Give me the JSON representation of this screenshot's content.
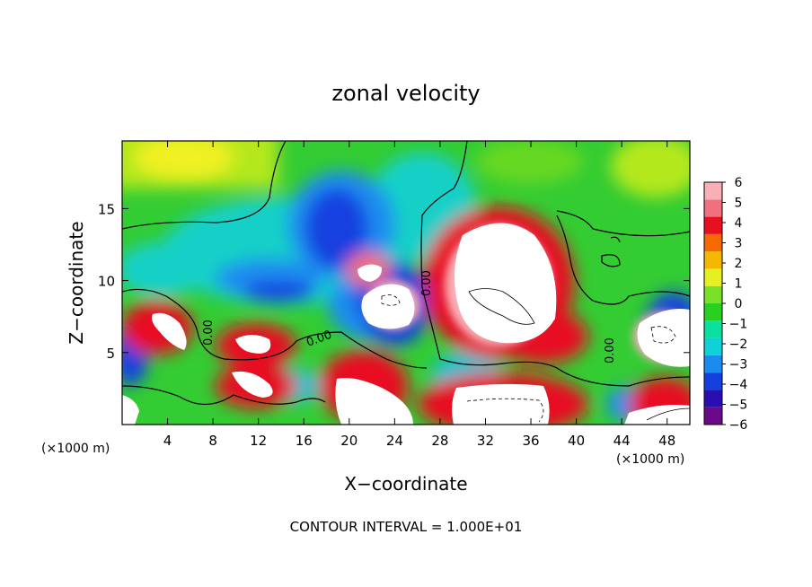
{
  "chart_data": {
    "type": "heatmap",
    "title": "zonal velocity",
    "xlabel": "X−coordinate",
    "ylabel": "Z−coordinate",
    "x_unit_left": "(×1000 m)",
    "x_unit_right": "(×1000 m)",
    "footer": "CONTOUR INTERVAL = 1.000E+01",
    "xlim": [
      0,
      50
    ],
    "ylim": [
      0,
      19.7
    ],
    "x_ticks": [
      4,
      8,
      12,
      16,
      20,
      24,
      28,
      32,
      36,
      40,
      44,
      48
    ],
    "y_ticks": [
      5,
      10,
      15
    ],
    "contour_label": "0.00",
    "colorbar": {
      "range": [
        -6,
        6
      ],
      "ticks": [
        6,
        5,
        4,
        3,
        2,
        1,
        0,
        -1,
        -2,
        -3,
        -4,
        -5,
        -6
      ],
      "colors": [
        "#6a0a8a",
        "#2a0fb0",
        "#1540e0",
        "#1a8cf0",
        "#10d0d8",
        "#0ae0a0",
        "#28d020",
        "#7ae028",
        "#e6f020",
        "#f5b800",
        "#f56a00",
        "#e81020",
        "#f07080",
        "#f8b0b8"
      ]
    },
    "features": [
      {
        "name": "positive-core",
        "x": 34,
        "z": 10.5,
        "level": 6
      },
      {
        "name": "positive-core",
        "x": 22.5,
        "z": 8.2,
        "level": 6
      },
      {
        "name": "positive-core",
        "x": 21.8,
        "z": 10.6,
        "level": 6
      },
      {
        "name": "positive-core",
        "x": 47,
        "z": 6.6,
        "level": 6
      },
      {
        "name": "positive-core",
        "x": 4.8,
        "z": 6.8,
        "level": 6
      },
      {
        "name": "positive-core",
        "x": 11,
        "z": 5.7,
        "level": 6
      },
      {
        "name": "positive-core",
        "x": 11,
        "z": 3.1,
        "level": 6
      },
      {
        "name": "positive-core",
        "x": 20,
        "z": 4.5,
        "level": 5
      },
      {
        "name": "positive-core",
        "x": 35,
        "z": 1.3,
        "level": 6
      },
      {
        "name": "negative-core",
        "x": 18,
        "z": 12.5,
        "level": -5
      },
      {
        "name": "negative-core",
        "x": 12,
        "z": 9.0,
        "level": -4
      },
      {
        "name": "upper-max",
        "x": 6,
        "z": 18.5,
        "level": 2
      }
    ]
  }
}
